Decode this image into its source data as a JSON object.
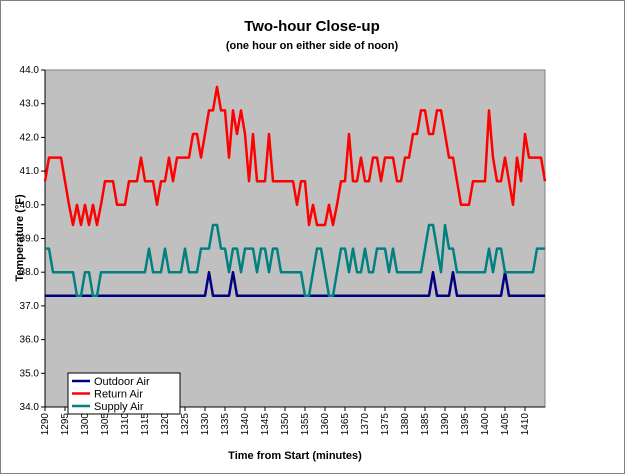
{
  "chart_data": {
    "type": "line",
    "title": "Two-hour Close-up",
    "subtitle": "(one hour on either side of noon)",
    "x_label": "Time from Start (minutes)",
    "y_label": "Temperature (°F)",
    "x": [
      1290,
      1291,
      1292,
      1293,
      1294,
      1295,
      1296,
      1297,
      1298,
      1299,
      1300,
      1301,
      1302,
      1303,
      1304,
      1305,
      1306,
      1307,
      1308,
      1309,
      1310,
      1311,
      1312,
      1313,
      1314,
      1315,
      1316,
      1317,
      1318,
      1319,
      1320,
      1321,
      1322,
      1323,
      1324,
      1325,
      1326,
      1327,
      1328,
      1329,
      1330,
      1331,
      1332,
      1333,
      1334,
      1335,
      1336,
      1337,
      1338,
      1339,
      1340,
      1341,
      1342,
      1343,
      1344,
      1345,
      1346,
      1347,
      1348,
      1349,
      1350,
      1351,
      1352,
      1353,
      1354,
      1355,
      1356,
      1357,
      1358,
      1359,
      1360,
      1361,
      1362,
      1363,
      1364,
      1365,
      1366,
      1367,
      1368,
      1369,
      1370,
      1371,
      1372,
      1373,
      1374,
      1375,
      1376,
      1377,
      1378,
      1379,
      1380,
      1381,
      1382,
      1383,
      1384,
      1385,
      1386,
      1387,
      1388,
      1389,
      1390,
      1391,
      1392,
      1393,
      1394,
      1395,
      1396,
      1397,
      1398,
      1399,
      1400,
      1401,
      1402,
      1403,
      1404,
      1405,
      1406,
      1407,
      1408,
      1409,
      1410,
      1411,
      1412,
      1413,
      1414,
      1415
    ],
    "xlim": [
      1290,
      1415
    ],
    "xticks": [
      1290,
      1295,
      1300,
      1305,
      1310,
      1315,
      1320,
      1325,
      1330,
      1335,
      1340,
      1345,
      1350,
      1355,
      1360,
      1365,
      1370,
      1375,
      1380,
      1385,
      1390,
      1395,
      1400,
      1405,
      1410
    ],
    "ylim": [
      34,
      44
    ],
    "yticks": [
      {
        "value": 34,
        "label": "34.0"
      },
      {
        "value": 35,
        "label": "35.0"
      },
      {
        "value": 36,
        "label": "36.0"
      },
      {
        "value": 37,
        "label": "37.0"
      },
      {
        "value": 38,
        "label": "38.0"
      },
      {
        "value": 39,
        "label": "39.0"
      },
      {
        "value": 40,
        "label": "40.0"
      },
      {
        "value": 41,
        "label": "41.0"
      },
      {
        "value": 42,
        "label": "42.0"
      },
      {
        "value": 43,
        "label": "43.0"
      },
      {
        "value": 44,
        "label": "44.0"
      }
    ],
    "plot_background": "#c0c0c0",
    "legend": "lower left",
    "series": [
      {
        "name": "Outdoor Air",
        "color": "#000080",
        "values": [
          37.3,
          37.3,
          37.3,
          37.3,
          37.3,
          37.3,
          37.3,
          37.3,
          37.3,
          37.3,
          37.3,
          37.3,
          37.3,
          37.3,
          37.3,
          37.3,
          37.3,
          37.3,
          37.3,
          37.3,
          37.3,
          37.3,
          37.3,
          37.3,
          37.3,
          37.3,
          37.3,
          37.3,
          37.3,
          37.3,
          37.3,
          37.3,
          37.3,
          37.3,
          37.3,
          37.3,
          37.3,
          37.3,
          37.3,
          37.3,
          37.3,
          38.0,
          37.3,
          37.3,
          37.3,
          37.3,
          37.3,
          38.0,
          37.3,
          37.3,
          37.3,
          37.3,
          37.3,
          37.3,
          37.3,
          37.3,
          37.3,
          37.3,
          37.3,
          37.3,
          37.3,
          37.3,
          37.3,
          37.3,
          37.3,
          37.3,
          37.3,
          37.3,
          37.3,
          37.3,
          37.3,
          37.3,
          37.3,
          37.3,
          37.3,
          37.3,
          37.3,
          37.3,
          37.3,
          37.3,
          37.3,
          37.3,
          37.3,
          37.3,
          37.3,
          37.3,
          37.3,
          37.3,
          37.3,
          37.3,
          37.3,
          37.3,
          37.3,
          37.3,
          37.3,
          37.3,
          37.3,
          38.0,
          37.3,
          37.3,
          37.3,
          37.3,
          38.0,
          37.3,
          37.3,
          37.3,
          37.3,
          37.3,
          37.3,
          37.3,
          37.3,
          37.3,
          37.3,
          37.3,
          37.3,
          38.0,
          37.3,
          37.3,
          37.3,
          37.3,
          37.3,
          37.3,
          37.3,
          37.3,
          37.3,
          37.3
        ]
      },
      {
        "name": "Return Air",
        "color": "#ff0000",
        "values": [
          40.7,
          41.4,
          41.4,
          41.4,
          41.4,
          40.7,
          40.0,
          39.4,
          40.0,
          39.4,
          40.0,
          39.4,
          40.0,
          39.4,
          40.0,
          40.7,
          40.7,
          40.7,
          40.0,
          40.0,
          40.0,
          40.7,
          40.7,
          40.7,
          41.4,
          40.7,
          40.7,
          40.7,
          40.0,
          40.7,
          40.7,
          41.4,
          40.7,
          41.4,
          41.4,
          41.4,
          41.4,
          42.1,
          42.1,
          41.4,
          42.1,
          42.8,
          42.8,
          43.5,
          42.8,
          42.8,
          41.4,
          42.8,
          42.1,
          42.8,
          42.1,
          40.7,
          42.1,
          40.7,
          40.7,
          40.7,
          42.1,
          40.7,
          40.7,
          40.7,
          40.7,
          40.7,
          40.7,
          40.0,
          40.7,
          40.7,
          39.4,
          40.0,
          39.4,
          39.4,
          39.4,
          40.0,
          39.4,
          40.0,
          40.7,
          40.7,
          42.1,
          40.7,
          40.7,
          41.4,
          40.7,
          40.7,
          41.4,
          41.4,
          40.7,
          41.4,
          41.4,
          41.4,
          40.7,
          40.7,
          41.4,
          41.4,
          42.1,
          42.1,
          42.8,
          42.8,
          42.1,
          42.1,
          42.8,
          42.8,
          42.1,
          41.4,
          41.4,
          40.7,
          40.0,
          40.0,
          40.0,
          40.7,
          40.7,
          40.7,
          40.7,
          42.8,
          41.4,
          40.7,
          40.7,
          41.4,
          40.7,
          40.0,
          41.4,
          40.7,
          42.1,
          41.4,
          41.4,
          41.4,
          41.4,
          40.7
        ]
      },
      {
        "name": "Supply Air",
        "color": "#008080",
        "values": [
          38.7,
          38.7,
          38.0,
          38.0,
          38.0,
          38.0,
          38.0,
          38.0,
          37.3,
          37.3,
          38.0,
          38.0,
          37.3,
          37.3,
          38.0,
          38.0,
          38.0,
          38.0,
          38.0,
          38.0,
          38.0,
          38.0,
          38.0,
          38.0,
          38.0,
          38.0,
          38.7,
          38.0,
          38.0,
          38.0,
          38.7,
          38.0,
          38.0,
          38.0,
          38.0,
          38.7,
          38.0,
          38.0,
          38.0,
          38.7,
          38.7,
          38.7,
          39.4,
          39.4,
          38.7,
          38.7,
          38.0,
          38.7,
          38.7,
          38.0,
          38.7,
          38.7,
          38.7,
          38.0,
          38.7,
          38.7,
          38.0,
          38.7,
          38.7,
          38.0,
          38.0,
          38.0,
          38.0,
          38.0,
          38.0,
          37.3,
          37.3,
          38.0,
          38.7,
          38.7,
          38.0,
          37.3,
          37.3,
          38.0,
          38.7,
          38.7,
          38.0,
          38.7,
          38.0,
          38.0,
          38.7,
          38.0,
          38.0,
          38.7,
          38.7,
          38.7,
          38.0,
          38.7,
          38.0,
          38.0,
          38.0,
          38.0,
          38.0,
          38.0,
          38.0,
          38.7,
          39.4,
          39.4,
          38.7,
          38.0,
          39.4,
          38.7,
          38.7,
          38.0,
          38.0,
          38.0,
          38.0,
          38.0,
          38.0,
          38.0,
          38.0,
          38.7,
          38.0,
          38.7,
          38.7,
          38.0,
          38.0,
          38.0,
          38.0,
          38.0,
          38.0,
          38.0,
          38.0,
          38.7,
          38.7,
          38.7
        ]
      }
    ]
  }
}
